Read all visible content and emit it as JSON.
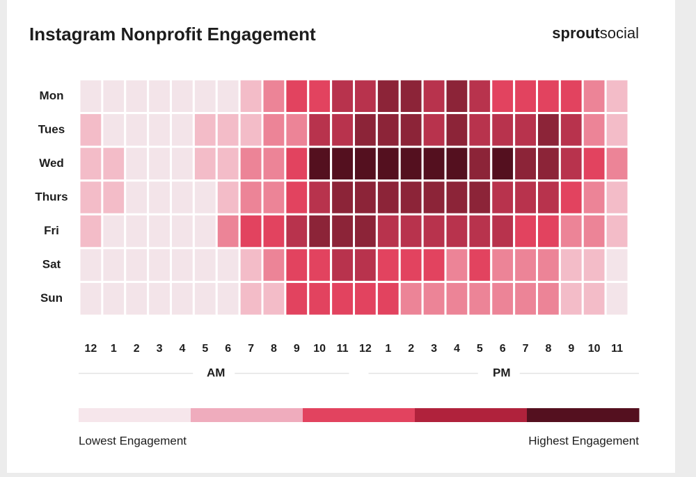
{
  "chart_data": {
    "type": "heatmap",
    "title": "Instagram Nonprofit Engagement",
    "brand": [
      "sprout",
      "social"
    ],
    "x": [
      "12",
      "1",
      "2",
      "3",
      "4",
      "5",
      "6",
      "7",
      "8",
      "9",
      "10",
      "11",
      "12",
      "1",
      "2",
      "3",
      "4",
      "5",
      "6",
      "7",
      "8",
      "9",
      "10",
      "11"
    ],
    "x_groups": [
      "AM",
      "PM"
    ],
    "categories": [
      "Mon",
      "Tues",
      "Wed",
      "Thurs",
      "Fri",
      "Sat",
      "Sun"
    ],
    "values": [
      [
        1,
        1,
        1,
        1,
        1,
        1,
        1,
        2,
        3,
        4,
        4,
        5,
        5,
        6,
        6,
        5,
        6,
        5,
        4,
        4,
        4,
        4,
        3,
        2
      ],
      [
        2,
        1,
        1,
        1,
        1,
        2,
        2,
        2,
        3,
        3,
        5,
        5,
        6,
        6,
        6,
        5,
        6,
        5,
        5,
        5,
        6,
        5,
        3,
        2
      ],
      [
        2,
        2,
        1,
        1,
        1,
        2,
        2,
        3,
        3,
        4,
        7,
        7,
        7,
        7,
        7,
        7,
        7,
        6,
        7,
        6,
        6,
        5,
        4,
        3
      ],
      [
        2,
        2,
        1,
        1,
        1,
        1,
        2,
        3,
        3,
        4,
        5,
        6,
        6,
        6,
        6,
        6,
        6,
        6,
        5,
        5,
        5,
        4,
        3,
        2
      ],
      [
        2,
        1,
        1,
        1,
        1,
        1,
        3,
        4,
        4,
        5,
        6,
        6,
        6,
        5,
        5,
        5,
        5,
        5,
        5,
        4,
        4,
        3,
        3,
        2
      ],
      [
        1,
        1,
        1,
        1,
        1,
        1,
        1,
        2,
        3,
        4,
        4,
        5,
        5,
        4,
        4,
        4,
        3,
        4,
        3,
        3,
        3,
        2,
        2,
        1
      ],
      [
        1,
        1,
        1,
        1,
        1,
        1,
        1,
        2,
        2,
        4,
        4,
        4,
        4,
        4,
        3,
        3,
        3,
        3,
        3,
        3,
        3,
        2,
        2,
        1
      ]
    ],
    "level_colors": [
      "#f3e4e9",
      "#f3bcc8",
      "#ec8497",
      "#e2435f",
      "#b8334d",
      "#8c2438",
      "#54101f"
    ],
    "legend": {
      "colors": [
        "#f6e6eb",
        "#efacbd",
        "#e2435f",
        "#b0223c",
        "#54101f"
      ],
      "low_label": "Lowest Engagement",
      "high_label": "Highest Engagement"
    }
  }
}
